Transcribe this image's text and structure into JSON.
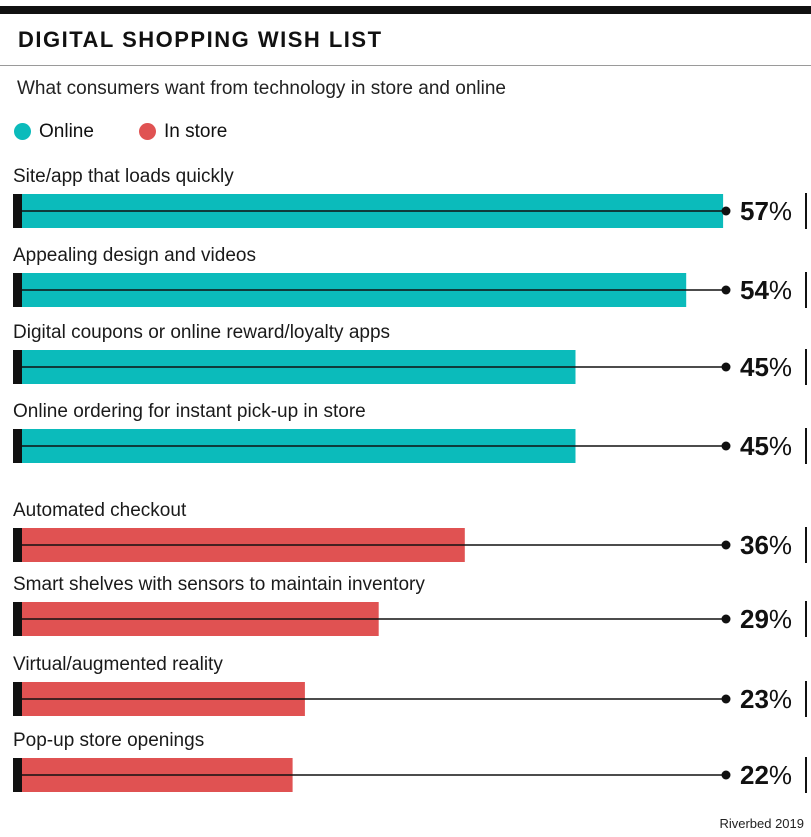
{
  "header": {
    "title": "DIGITAL SHOPPING WISH LIST",
    "subtitle": "What consumers want from technology in store and online"
  },
  "legend": [
    {
      "label": "Online",
      "color": "#0bbbbb"
    },
    {
      "label": "In store",
      "color": "#e05252"
    }
  ],
  "footer": {
    "source": "Riverbed 2019"
  },
  "chart_data": {
    "type": "bar",
    "orientation": "horizontal",
    "title": "DIGITAL SHOPPING WISH LIST",
    "subtitle": "What consumers want from technology in store and online",
    "value_unit": "%",
    "xlim": [
      0,
      70
    ],
    "grid": false,
    "legend_position": "top-left",
    "series": [
      {
        "name": "Online",
        "color": "#0bbbbb",
        "categories": [
          "Site/app that loads quickly",
          "Appealing design and videos",
          "Digital coupons or online reward/loyalty apps",
          "Online ordering for instant pick-up in store"
        ],
        "values": [
          57,
          54,
          45,
          45
        ]
      },
      {
        "name": "In store",
        "color": "#e05252",
        "categories": [
          "Automated checkout",
          "Smart shelves with sensors to maintain inventory",
          "Virtual/augmented reality",
          "Pop-up store openings"
        ],
        "values": [
          36,
          29,
          23,
          22
        ]
      }
    ]
  }
}
